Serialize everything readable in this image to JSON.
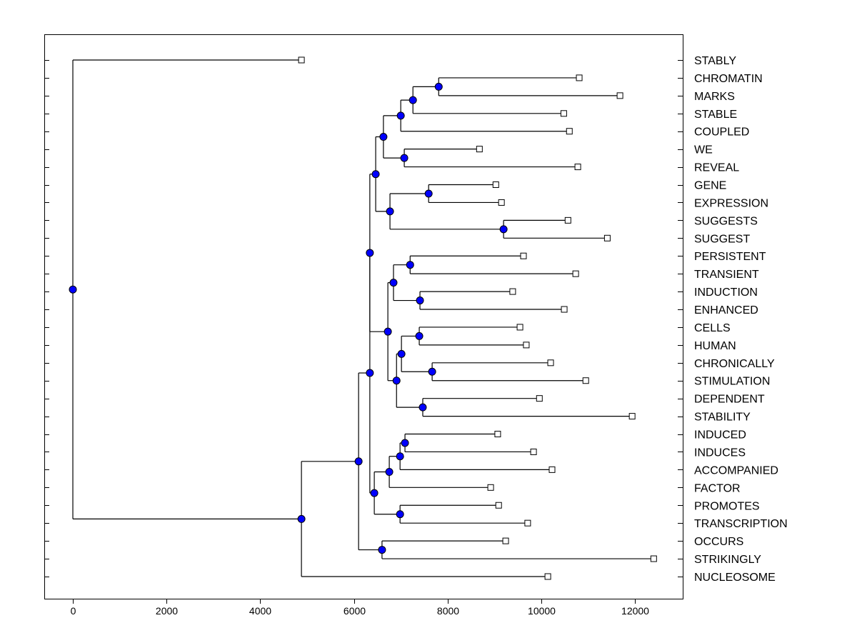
{
  "chart_data": {
    "type": "dendrogram",
    "orientation": "horizontal",
    "xlim": [
      -610,
      13020
    ],
    "x_ticks": [
      0,
      2000,
      4000,
      6000,
      8000,
      10000,
      12000
    ],
    "tick_labels": [
      "0",
      "2000",
      "4000",
      "6000",
      "8000",
      "10000",
      "12000"
    ],
    "grid": false,
    "colors": {
      "node": "#0000ff",
      "line": "#000000",
      "leaf_marker": "#ffffff"
    },
    "tree": {
      "h": 0,
      "children": [
        {
          "leaf": "STABLY",
          "value": 4880
        },
        {
          "h": 4880,
          "children": [
            {
              "h": 6100,
              "children": [
                {
                  "h": 6340,
                  "children": [
                    {
                      "h": 6340,
                      "children": [
                        {
                          "h": 6465,
                          "children": [
                            {
                              "h": 6630,
                              "children": [
                                {
                                  "h": 7000,
                                  "children": [
                                    {
                                      "h": 7260,
                                      "children": [
                                        {
                                          "h": 7810,
                                          "children": [
                                            {
                                              "leaf": "CHROMATIN",
                                              "value": 10810
                                            },
                                            {
                                              "leaf": "MARKS",
                                              "value": 11680
                                            }
                                          ]
                                        },
                                        {
                                          "leaf": "STABLE",
                                          "value": 10480
                                        }
                                      ]
                                    },
                                    {
                                      "leaf": "COUPLED",
                                      "value": 10600
                                    }
                                  ]
                                },
                                {
                                  "h": 7075,
                                  "children": [
                                    {
                                      "leaf": "WE",
                                      "value": 8680
                                    },
                                    {
                                      "leaf": "REVEAL",
                                      "value": 10780
                                    }
                                  ]
                                }
                              ]
                            },
                            {
                              "h": 6770,
                              "children": [
                                {
                                  "h": 7595,
                                  "children": [
                                    {
                                      "leaf": "GENE",
                                      "value": 9030
                                    },
                                    {
                                      "leaf": "EXPRESSION",
                                      "value": 9150
                                    }
                                  ]
                                },
                                {
                                  "h": 9195,
                                  "children": [
                                    {
                                      "leaf": "SUGGESTS",
                                      "value": 10570
                                    },
                                    {
                                      "leaf": "SUGGEST",
                                      "value": 11410
                                    }
                                  ]
                                }
                              ]
                            }
                          ]
                        },
                        {
                          "h": 6725,
                          "children": [
                            {
                              "h": 6845,
                              "children": [
                                {
                                  "h": 7200,
                                  "children": [
                                    {
                                      "leaf": "PERSISTENT",
                                      "value": 9620
                                    },
                                    {
                                      "leaf": "TRANSIENT",
                                      "value": 10735
                                    }
                                  ]
                                },
                                {
                                  "h": 7410,
                                  "children": [
                                    {
                                      "leaf": "INDUCTION",
                                      "value": 9390
                                    },
                                    {
                                      "leaf": "ENHANCED",
                                      "value": 10490
                                    }
                                  ]
                                }
                              ]
                            },
                            {
                              "h": 6910,
                              "children": [
                                {
                                  "h": 7015,
                                  "children": [
                                    {
                                      "h": 7395,
                                      "children": [
                                        {
                                          "leaf": "CELLS",
                                          "value": 9545
                                        },
                                        {
                                          "leaf": "HUMAN",
                                          "value": 9680
                                        }
                                      ]
                                    },
                                    {
                                      "h": 7670,
                                      "children": [
                                        {
                                          "leaf": "CHRONICALLY",
                                          "value": 10200
                                        },
                                        {
                                          "leaf": "STIMULATION",
                                          "value": 10950
                                        }
                                      ]
                                    }
                                  ]
                                },
                                {
                                  "h": 7470,
                                  "children": [
                                    {
                                      "leaf": "DEPENDENT",
                                      "value": 9960
                                    },
                                    {
                                      "leaf": "STABILITY",
                                      "value": 11940
                                    }
                                  ]
                                }
                              ]
                            }
                          ]
                        }
                      ]
                    },
                    {
                      "h": 6435,
                      "children": [
                        {
                          "h": 6755,
                          "children": [
                            {
                              "h": 6985,
                              "children": [
                                {
                                  "h": 7090,
                                  "children": [
                                    {
                                      "leaf": "INDUCED",
                                      "value": 9070
                                    },
                                    {
                                      "leaf": "INDUCES",
                                      "value": 9835
                                    }
                                  ]
                                },
                                {
                                  "leaf": "ACCOMPANIED",
                                  "value": 10230
                                }
                              ]
                            },
                            {
                              "leaf": "FACTOR",
                              "value": 8920
                            }
                          ]
                        },
                        {
                          "h": 6985,
                          "children": [
                            {
                              "leaf": "PROMOTES",
                              "value": 9090
                            },
                            {
                              "leaf": "TRANSCRIPTION",
                              "value": 9710
                            }
                          ]
                        }
                      ]
                    }
                  ]
                },
                {
                  "h": 6600,
                  "children": [
                    {
                      "leaf": "OCCURS",
                      "value": 9240
                    },
                    {
                      "leaf": "STRIKINGLY",
                      "value": 12400
                    }
                  ]
                }
              ]
            },
            {
              "leaf": "NUCLEOSOME",
              "value": 10140
            }
          ]
        }
      ]
    }
  }
}
